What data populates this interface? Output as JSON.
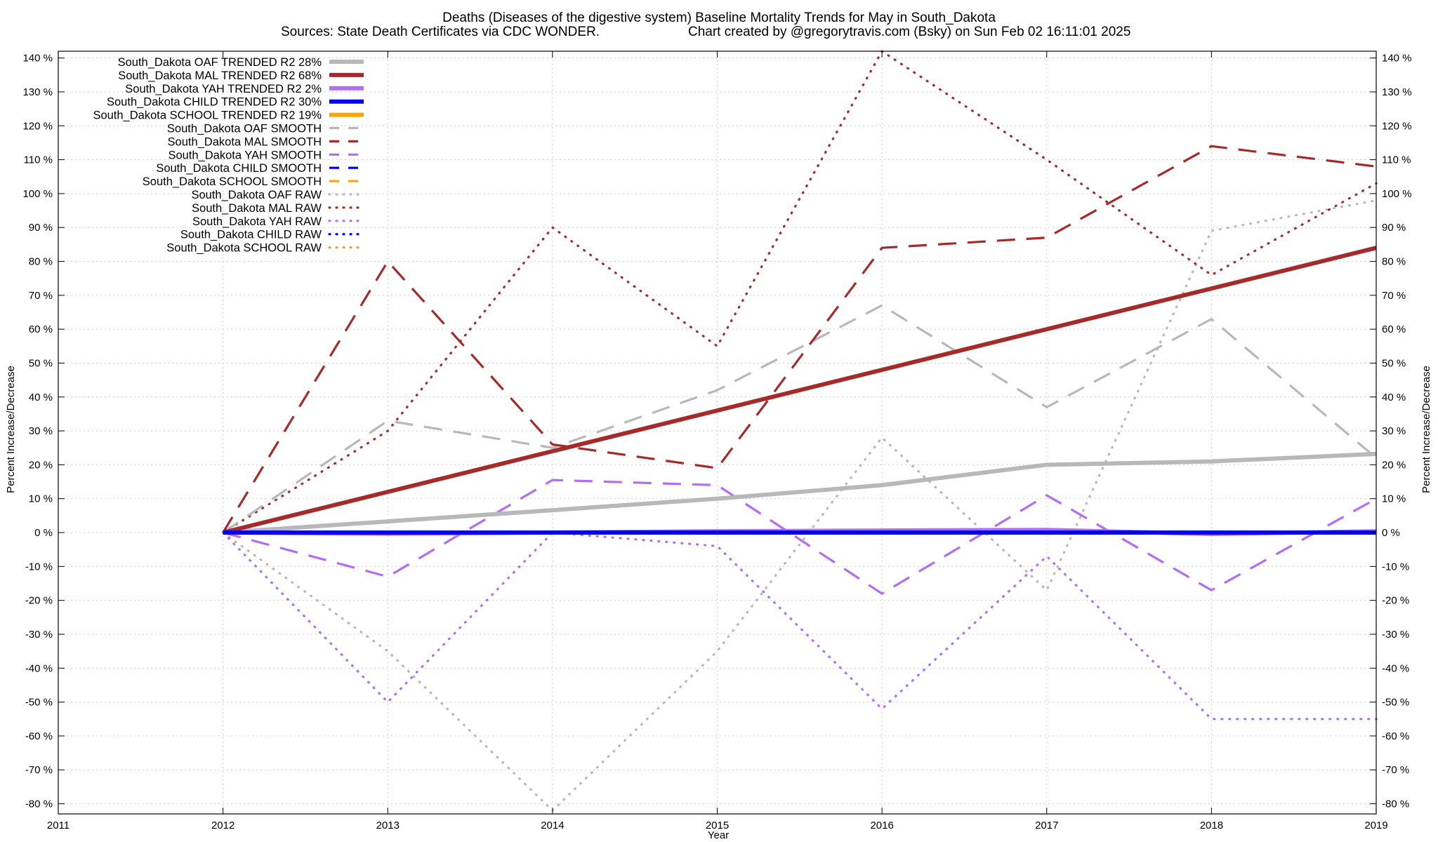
{
  "chart_data": {
    "type": "line",
    "title": "Deaths (Diseases of the digestive system)  Baseline Mortality Trends for May in South_Dakota",
    "subtitle_left": "Sources: State Death Certificates via CDC WONDER.",
    "subtitle_right": "Chart created by @gregorytravis.com (Bsky) on Sun Feb 02 16:11:01 2025",
    "xlabel": "Year",
    "ylabel": "Percent Increase/Decrease",
    "ylabel_right": "Percent Increase/Decrease",
    "xlim": [
      2011,
      2019
    ],
    "ylim": [
      -83,
      142
    ],
    "x_ticks": [
      2011,
      2012,
      2013,
      2014,
      2015,
      2016,
      2017,
      2018,
      2019
    ],
    "y_ticks": [
      -80,
      -70,
      -60,
      -50,
      -40,
      -30,
      -20,
      -10,
      0,
      10,
      20,
      30,
      40,
      50,
      60,
      70,
      80,
      90,
      100,
      110,
      120,
      130,
      140
    ],
    "y_tick_suffix": " %",
    "grid": true,
    "legend_position": "top-left",
    "series": [
      {
        "name": "South_Dakota OAF TRENDED R2  28%",
        "color": "#b8b8b8",
        "style": "solid",
        "x": [
          2012,
          2013,
          2014,
          2015,
          2016,
          2017,
          2018,
          2019
        ],
        "values": [
          0,
          3.3,
          6.6,
          10,
          14,
          20,
          21,
          23.2
        ]
      },
      {
        "name": "South_Dakota MAL TRENDED R2  68%",
        "color": "#a52a2a",
        "style": "solid",
        "x": [
          2012,
          2019
        ],
        "values": [
          0,
          84
        ]
      },
      {
        "name": "South_Dakota YAH TRENDED R2   2%",
        "color": "#b26cf5",
        "style": "solid",
        "x": [
          2012,
          2013,
          2014,
          2015,
          2016,
          2017,
          2018,
          2019
        ],
        "values": [
          0,
          -0.3,
          0,
          0.4,
          0.6,
          0.8,
          -0.4,
          0.4
        ]
      },
      {
        "name": "South_Dakota CHILD TRENDED R2  30%",
        "color": "#0000ee",
        "style": "solid",
        "x": [
          2012,
          2013,
          2014,
          2015,
          2016,
          2017,
          2018,
          2019
        ],
        "values": [
          0,
          0,
          0,
          0,
          0,
          0,
          0,
          0
        ]
      },
      {
        "name": "South_Dakota SCHOOL TRENDED R2  19%",
        "color": "#ffa500",
        "style": "solid",
        "x": [],
        "values": []
      },
      {
        "name": "South_Dakota OAF SMOOTH",
        "color": "#b8b8b8",
        "style": "dashed",
        "x": [
          2012,
          2013,
          2014,
          2015,
          2016,
          2017,
          2018,
          2019
        ],
        "values": [
          0,
          33,
          25,
          42,
          67,
          37,
          63,
          22
        ]
      },
      {
        "name": "South_Dakota MAL SMOOTH",
        "color": "#a52a2a",
        "style": "dashed",
        "x": [
          2012,
          2013,
          2014,
          2015,
          2016,
          2017,
          2018,
          2019
        ],
        "values": [
          0,
          80,
          26,
          19,
          84,
          87,
          114,
          108
        ]
      },
      {
        "name": "South_Dakota YAH SMOOTH",
        "color": "#b26cf5",
        "style": "dashed",
        "x": [
          2012,
          2013,
          2014,
          2015,
          2016,
          2017,
          2018,
          2019
        ],
        "values": [
          0,
          -13,
          15.5,
          14,
          -18,
          11,
          -17,
          10
        ]
      },
      {
        "name": "South_Dakota CHILD SMOOTH",
        "color": "#0000ee",
        "style": "dashed",
        "x": [],
        "values": []
      },
      {
        "name": "South_Dakota SCHOOL SMOOTH",
        "color": "#ffa500",
        "style": "dashed",
        "x": [],
        "values": []
      },
      {
        "name": "South_Dakota OAF RAW",
        "color": "#b8b8b8",
        "style": "dotted",
        "x": [
          2012,
          2013,
          2014,
          2015,
          2016,
          2017,
          2018,
          2019
        ],
        "values": [
          0,
          -35,
          -82,
          -35,
          28,
          -17,
          89,
          98
        ]
      },
      {
        "name": "South_Dakota MAL RAW",
        "color": "#a52a2a",
        "style": "dotted",
        "x": [
          2012,
          2013,
          2014,
          2015,
          2016,
          2017,
          2018,
          2019
        ],
        "values": [
          0,
          30,
          90,
          55,
          142,
          110,
          76,
          103
        ]
      },
      {
        "name": "South_Dakota YAH RAW",
        "color": "#b26cf5",
        "style": "dotted",
        "x": [
          2012,
          2013,
          2014,
          2015,
          2016,
          2017,
          2018,
          2019
        ],
        "values": [
          0,
          -50,
          0,
          -4,
          -52,
          -7,
          -55,
          -55
        ]
      },
      {
        "name": "South_Dakota CHILD RAW",
        "color": "#0000ee",
        "style": "dotted",
        "x": [],
        "values": []
      },
      {
        "name": "South_Dakota SCHOOL RAW",
        "color": "#ffa500",
        "style": "dotted",
        "x": [],
        "values": []
      }
    ]
  }
}
